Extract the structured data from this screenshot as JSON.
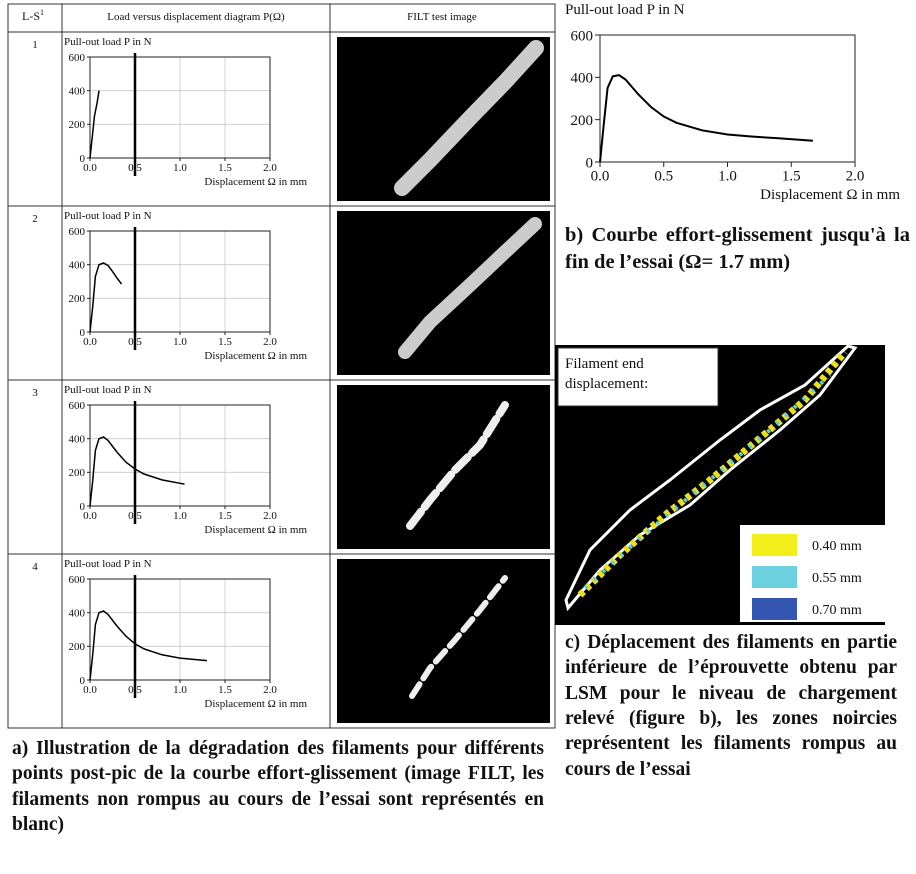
{
  "table": {
    "headers": [
      "L-S",
      "Load versus displacement diagram P(Ω)",
      "FILT test image"
    ],
    "header_sup": "1",
    "rows": [
      "1",
      "2",
      "3",
      "4"
    ]
  },
  "chart_data": [
    {
      "type": "line",
      "ylabel": "Pull-out load P in N",
      "xlabel": "Displacement Ω in mm",
      "x": [
        0,
        0.02,
        0.05,
        0.08,
        0.1
      ],
      "series": [
        {
          "color": "#000000",
          "values": [
            0,
            100,
            250,
            330,
            400
          ]
        }
      ],
      "xlim": [
        0,
        2
      ],
      "ylim": [
        0,
        600
      ],
      "xticks": [
        {
          "value": 0,
          "label": "0.0"
        },
        0.5,
        {
          "value": 1,
          "label": "1.0"
        },
        1.5,
        {
          "value": 2,
          "label": "2.0"
        }
      ],
      "yticks": [
        0,
        200,
        400,
        600
      ],
      "grid": true,
      "reference_line_x": 0.5
    },
    {
      "type": "line",
      "ylabel": "Pull-out load P in N",
      "xlabel": "Displacement Ω in mm",
      "x": [
        0,
        0.03,
        0.06,
        0.1,
        0.15,
        0.2,
        0.25,
        0.3,
        0.35
      ],
      "series": [
        {
          "color": "#000000",
          "values": [
            0,
            150,
            330,
            400,
            410,
            395,
            360,
            320,
            285
          ]
        }
      ],
      "xlim": [
        0,
        2
      ],
      "ylim": [
        0,
        600
      ],
      "xticks": [
        {
          "value": 0,
          "label": "0.0"
        },
        0.5,
        {
          "value": 1,
          "label": "1.0"
        },
        1.5,
        {
          "value": 2,
          "label": "2.0"
        }
      ],
      "yticks": [
        0,
        200,
        400,
        600
      ],
      "grid": true,
      "reference_line_x": 0.5
    },
    {
      "type": "line",
      "ylabel": "Pull-out load P in N",
      "xlabel": "Displacement Ω in mm",
      "x": [
        0,
        0.03,
        0.06,
        0.1,
        0.15,
        0.2,
        0.3,
        0.4,
        0.5,
        0.6,
        0.8,
        1.0,
        1.05
      ],
      "series": [
        {
          "color": "#000000",
          "values": [
            0,
            150,
            330,
            400,
            410,
            390,
            320,
            260,
            220,
            190,
            155,
            135,
            130
          ]
        }
      ],
      "xlim": [
        0,
        2
      ],
      "ylim": [
        0,
        600
      ],
      "xticks": [
        {
          "value": 0,
          "label": "0.0"
        },
        0.5,
        {
          "value": 1,
          "label": "1.0"
        },
        1.5,
        {
          "value": 2,
          "label": "2.0"
        }
      ],
      "yticks": [
        0,
        200,
        400,
        600
      ],
      "grid": true,
      "reference_line_x": 0.5
    },
    {
      "type": "line",
      "ylabel": "Pull-out load P in N",
      "xlabel": "Displacement Ω in mm",
      "x": [
        0,
        0.03,
        0.06,
        0.1,
        0.15,
        0.2,
        0.3,
        0.4,
        0.5,
        0.6,
        0.8,
        1.0,
        1.3
      ],
      "series": [
        {
          "color": "#000000",
          "values": [
            0,
            150,
            330,
            400,
            410,
            390,
            320,
            260,
            215,
            185,
            150,
            130,
            115
          ]
        }
      ],
      "xlim": [
        0,
        2
      ],
      "ylim": [
        0,
        600
      ],
      "xticks": [
        {
          "value": 0,
          "label": "0.0"
        },
        0.5,
        {
          "value": 1,
          "label": "1.0"
        },
        1.5,
        {
          "value": 2,
          "label": "2.0"
        }
      ],
      "yticks": [
        0,
        200,
        400,
        600
      ],
      "grid": true,
      "reference_line_x": 0.5
    },
    {
      "type": "line",
      "ylabel": "Pull-out load P in N",
      "xlabel": "Displacement Ω in mm",
      "x": [
        0,
        0.03,
        0.06,
        0.1,
        0.15,
        0.2,
        0.3,
        0.4,
        0.5,
        0.6,
        0.8,
        1.0,
        1.2,
        1.4,
        1.67
      ],
      "series": [
        {
          "color": "#000000",
          "values": [
            0,
            180,
            350,
            405,
            410,
            390,
            320,
            260,
            215,
            185,
            150,
            130,
            120,
            112,
            100
          ]
        }
      ],
      "xlim": [
        0,
        2
      ],
      "ylim": [
        0,
        600
      ],
      "xticks": [
        {
          "value": 0,
          "label": "0.0"
        },
        0.5,
        {
          "value": 1,
          "label": "1.0"
        },
        1.5,
        {
          "value": 2,
          "label": "2.0"
        }
      ],
      "yticks": [
        0,
        200,
        400,
        600
      ],
      "grid": false
    }
  ],
  "lsm": {
    "label": [
      "Filament end",
      "displacement:"
    ],
    "legend": [
      {
        "label": "0.40 mm",
        "color": "#f2ee1a"
      },
      {
        "label": "0.55 mm",
        "color": "#6cd0df"
      },
      {
        "label": "0.70 mm",
        "color": "#3455b0"
      }
    ]
  },
  "captions": {
    "a": "a) Illustration de la dégradation des filaments pour différents points post-pic de la courbe effort-glissement (image FILT, les filaments non rompus au cours de l’essai sont représentés en blanc)",
    "b": "b) Courbe effort-glissement jusqu'à la fin de l’essai (Ω= 1.7 mm)",
    "c": "c) Déplacement des filaments en partie inférieure de l’éprouvette obtenu par LSM pour le niveau de chargement relevé (figure b), les zones noircies représentent les filaments rompus au cours de l’essai"
  }
}
